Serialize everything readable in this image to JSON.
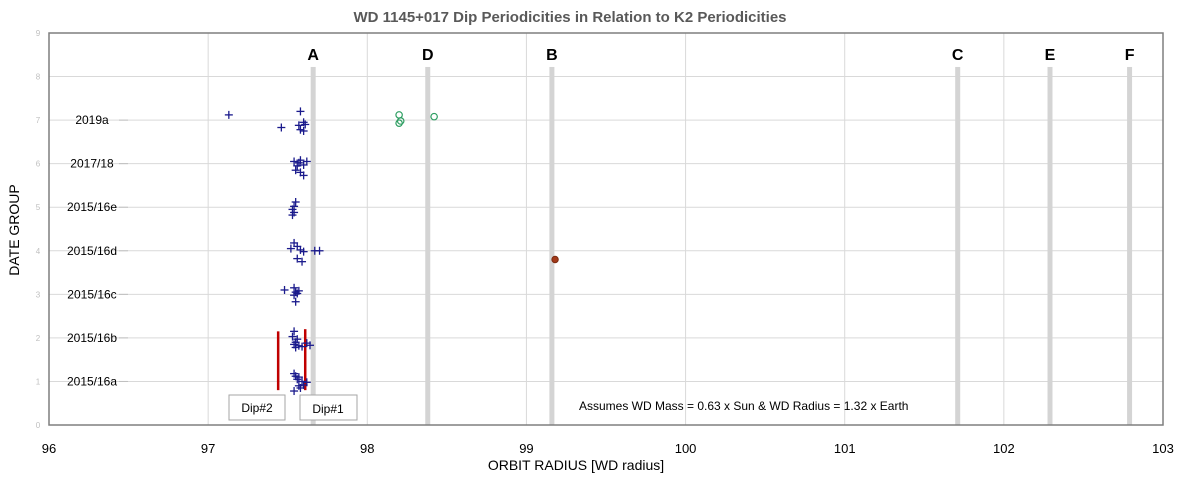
{
  "chart_data": {
    "type": "scatter",
    "title": "WD 1145+017 Dip Periodicities in Relation to K2 Periodicities",
    "xlabel": "ORBIT RADIUS [WD radius]",
    "ylabel": "DATE GROUP",
    "xlim": [
      96,
      103
    ],
    "ylim": [
      0,
      9
    ],
    "x_ticks": [
      "96",
      "97",
      "98",
      "99",
      "100",
      "101",
      "102",
      "103"
    ],
    "y_ticks": [
      "0",
      "1",
      "2",
      "3",
      "4",
      "5",
      "6",
      "7",
      "8",
      "9"
    ],
    "grid": true,
    "date_groups": [
      {
        "label": "2015/16a",
        "y": 1
      },
      {
        "label": "2015/16b",
        "y": 2
      },
      {
        "label": "2015/16c",
        "y": 3
      },
      {
        "label": "2015/16d",
        "y": 4
      },
      {
        "label": "2015/16e",
        "y": 5
      },
      {
        "label": "2017/18",
        "y": 6
      },
      {
        "label": "2019a",
        "y": 7
      }
    ],
    "k2_bands": [
      {
        "label": "A",
        "x": 97.66
      },
      {
        "label": "D",
        "x": 98.38
      },
      {
        "label": "B",
        "x": 99.16
      },
      {
        "label": "C",
        "x": 101.71
      },
      {
        "label": "E",
        "x": 102.29
      },
      {
        "label": "F",
        "x": 102.79
      }
    ],
    "dip_markers": [
      {
        "label": "Dip#2",
        "x": 97.44,
        "y_range": [
          0.8,
          2.15
        ]
      },
      {
        "label": "Dip#1",
        "x": 97.61,
        "y_range": [
          0.8,
          2.2
        ]
      }
    ],
    "series": [
      {
        "marker": "plus",
        "color": "#1a1a8c",
        "points": [
          [
            97.13,
            7.12
          ],
          [
            97.46,
            6.83
          ],
          [
            97.58,
            7.2
          ],
          [
            97.6,
            6.95
          ],
          [
            97.57,
            6.88
          ],
          [
            97.61,
            6.9
          ],
          [
            97.58,
            6.78
          ],
          [
            97.6,
            6.75
          ],
          [
            97.54,
            6.05
          ],
          [
            97.58,
            6.08
          ],
          [
            97.62,
            6.05
          ],
          [
            97.56,
            5.95
          ],
          [
            97.6,
            5.97
          ],
          [
            97.55,
            5.85
          ],
          [
            97.58,
            5.8
          ],
          [
            97.6,
            5.73
          ],
          [
            97.57,
            6.02
          ],
          [
            97.55,
            5.12
          ],
          [
            97.54,
            5.02
          ],
          [
            97.53,
            4.95
          ],
          [
            97.54,
            4.88
          ],
          [
            97.53,
            4.82
          ],
          [
            97.54,
            4.18
          ],
          [
            97.52,
            4.05
          ],
          [
            97.56,
            4.1
          ],
          [
            97.58,
            4.02
          ],
          [
            97.6,
            3.98
          ],
          [
            97.56,
            3.82
          ],
          [
            97.59,
            3.75
          ],
          [
            97.67,
            4.0
          ],
          [
            97.7,
            4.0
          ],
          [
            97.48,
            3.1
          ],
          [
            97.54,
            3.15
          ],
          [
            97.55,
            3.05
          ],
          [
            97.57,
            3.08
          ],
          [
            97.54,
            2.98
          ],
          [
            97.56,
            3.02
          ],
          [
            97.55,
            2.83
          ],
          [
            97.54,
            2.15
          ],
          [
            97.53,
            2.03
          ],
          [
            97.56,
            1.97
          ],
          [
            97.55,
            1.9
          ],
          [
            97.54,
            1.85
          ],
          [
            97.57,
            1.82
          ],
          [
            97.59,
            1.8
          ],
          [
            97.62,
            1.88
          ],
          [
            97.64,
            1.83
          ],
          [
            97.55,
            1.78
          ],
          [
            97.54,
            1.18
          ],
          [
            97.55,
            1.12
          ],
          [
            97.57,
            1.1
          ],
          [
            97.56,
            1.05
          ],
          [
            97.59,
            1.0
          ],
          [
            97.62,
            0.98
          ],
          [
            97.6,
            0.92
          ],
          [
            97.57,
            0.9
          ],
          [
            97.54,
            0.78
          ],
          [
            97.58,
            0.85
          ]
        ]
      },
      {
        "marker": "circle-open",
        "color": "#2e9e62",
        "points": [
          [
            98.2,
            7.12
          ],
          [
            98.21,
            6.98
          ],
          [
            98.2,
            6.93
          ],
          [
            98.42,
            7.08
          ]
        ]
      },
      {
        "marker": "circle-filled",
        "color": "#a33a1a",
        "points": [
          [
            99.18,
            3.8
          ]
        ]
      }
    ],
    "annotations": [
      "Assumes WD Mass = 0.63 x Sun & WD Radius  = 1.32 x Earth"
    ]
  }
}
